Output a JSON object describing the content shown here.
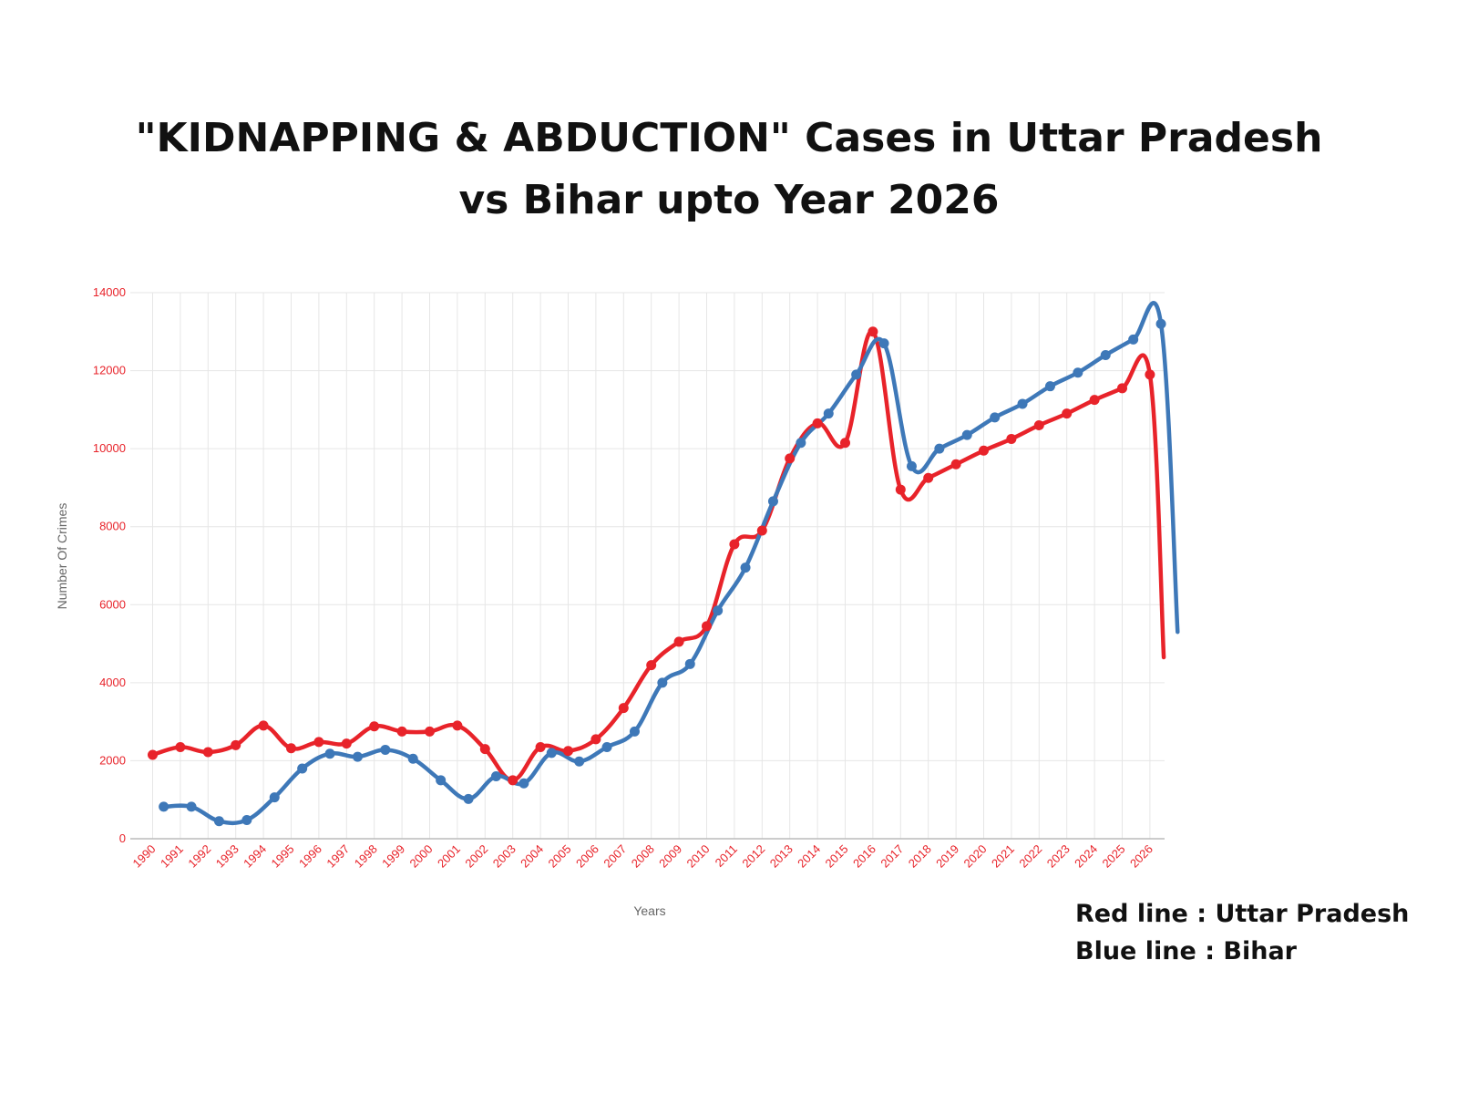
{
  "title_lines": [
    "\"KIDNAPPING & ABDUCTION\" Cases in Uttar Pradesh",
    "vs Bihar upto Year 2026"
  ],
  "legend": {
    "red": "Red line : Uttar Pradesh",
    "blue": "Blue line : Bihar"
  },
  "colors": {
    "red": "#e8232a",
    "blue": "#3e78b8",
    "grid": "#e6e6e6",
    "axis": "#bbbbbb"
  },
  "chart_data": {
    "type": "line",
    "xlabel": "Years",
    "ylabel": "Number Of Crimes",
    "ylim": [
      0,
      14000
    ],
    "yticks": [
      0,
      2000,
      4000,
      6000,
      8000,
      10000,
      12000,
      14000
    ],
    "categories": [
      "1990",
      "1991",
      "1992",
      "1993",
      "1994",
      "1995",
      "1996",
      "1997",
      "1998",
      "1999",
      "2000",
      "2001",
      "2002",
      "2003",
      "2004",
      "2005",
      "2006",
      "2007",
      "2008",
      "2009",
      "2010",
      "2011",
      "2012",
      "2013",
      "2014",
      "2015",
      "2016",
      "2017",
      "2018",
      "2019",
      "2020",
      "2021",
      "2022",
      "2023",
      "2024",
      "2025",
      "2026"
    ],
    "grid": true,
    "series": [
      {
        "color_key": "red",
        "points": [
          [
            1990.0,
            2150
          ],
          [
            1991.0,
            2350
          ],
          [
            1992.0,
            2220
          ],
          [
            1993.0,
            2400
          ],
          [
            1994.0,
            2900
          ],
          [
            1995.0,
            2320
          ],
          [
            1996.0,
            2480
          ],
          [
            1997.0,
            2440
          ],
          [
            1998.0,
            2880
          ],
          [
            1999.0,
            2750
          ],
          [
            2000.0,
            2750
          ],
          [
            2001.0,
            2900
          ],
          [
            2002.0,
            2300
          ],
          [
            2003.0,
            1500
          ],
          [
            2004.0,
            2350
          ],
          [
            2005.0,
            2250
          ],
          [
            2006.0,
            2550
          ],
          [
            2007.0,
            3350
          ],
          [
            2008.0,
            4450
          ],
          [
            2009.0,
            5050
          ],
          [
            2010.0,
            5450
          ],
          [
            2011.0,
            7550
          ],
          [
            2012.0,
            7900
          ],
          [
            2013.0,
            9750
          ],
          [
            2014.0,
            10650
          ],
          [
            2015.0,
            10150
          ],
          [
            2016.0,
            13000
          ],
          [
            2017.0,
            8950
          ],
          [
            2018.0,
            9250
          ],
          [
            2019.0,
            9600
          ],
          [
            2020.0,
            9950
          ],
          [
            2021.0,
            10250
          ],
          [
            2022.0,
            10600
          ],
          [
            2023.0,
            10900
          ],
          [
            2024.0,
            11250
          ],
          [
            2025.0,
            11550
          ],
          [
            2026.0,
            11900
          ]
        ],
        "tail": [
          2026.5,
          4650
        ]
      },
      {
        "color_key": "blue",
        "points": [
          [
            1990.4,
            820
          ],
          [
            1991.4,
            820
          ],
          [
            1992.4,
            450
          ],
          [
            1993.4,
            480
          ],
          [
            1994.4,
            1060
          ],
          [
            1995.4,
            1800
          ],
          [
            1996.4,
            2180
          ],
          [
            1997.4,
            2100
          ],
          [
            1998.4,
            2280
          ],
          [
            1999.4,
            2050
          ],
          [
            2000.4,
            1500
          ],
          [
            2001.4,
            1020
          ],
          [
            2002.4,
            1600
          ],
          [
            2003.4,
            1420
          ],
          [
            2004.4,
            2200
          ],
          [
            2005.4,
            1980
          ],
          [
            2006.4,
            2350
          ],
          [
            2007.4,
            2750
          ],
          [
            2008.4,
            4000
          ],
          [
            2009.4,
            4480
          ],
          [
            2010.4,
            5850
          ],
          [
            2011.4,
            6950
          ],
          [
            2012.4,
            8650
          ],
          [
            2013.4,
            10150
          ],
          [
            2014.4,
            10900
          ],
          [
            2015.4,
            11900
          ],
          [
            2016.4,
            12700
          ],
          [
            2017.4,
            9550
          ],
          [
            2018.4,
            10000
          ],
          [
            2019.4,
            10350
          ],
          [
            2020.4,
            10800
          ],
          [
            2021.4,
            11150
          ],
          [
            2022.4,
            11600
          ],
          [
            2023.4,
            11950
          ],
          [
            2024.4,
            12400
          ],
          [
            2025.4,
            12800
          ],
          [
            2026.4,
            13200
          ]
        ],
        "tail": [
          2027.0,
          5300
        ]
      }
    ]
  }
}
